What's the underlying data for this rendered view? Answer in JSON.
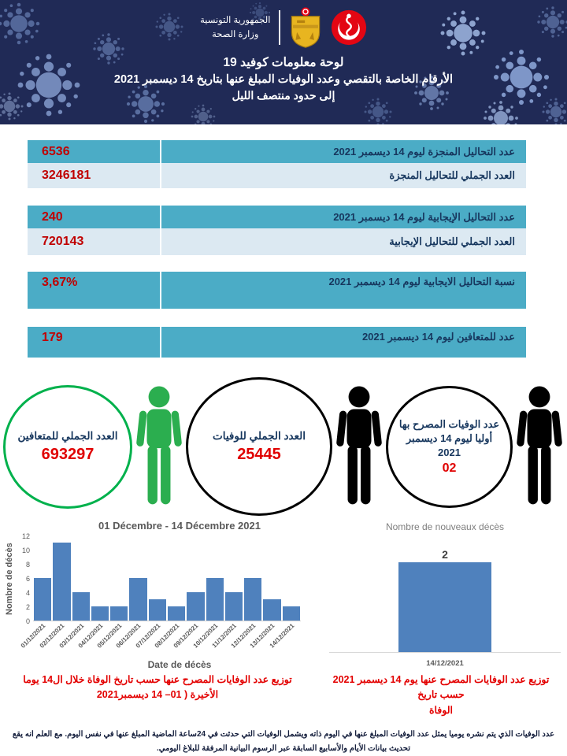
{
  "header": {
    "government_line1": "الجمهورية التونسية",
    "government_line2": "وزارة الصحة",
    "title_line1": "لوحة معلومات كوفيد  19",
    "title_line2": "الأرقام الخاصة بالتقصي وعدد الوفيات المبلغ عنها بتاريخ 14 ديسمبر 2021",
    "title_line3": "إلى حدود منتصف الليل"
  },
  "stat_rows": [
    {
      "label": "عدد التحاليل المنجزة ليوم  14 ديسمبر 2021",
      "value": "6536"
    },
    {
      "label": "العدد الجملي للتحاليل المنجزة",
      "value": "3246181"
    },
    {
      "label": "عدد التحاليل الإيجابية ليوم  14 ديسمبر 2021",
      "value": "240"
    },
    {
      "label": "العدد الجملي للتحاليل الإيجابية",
      "value": "720143"
    },
    {
      "label": "نسبة التحاليل الايجابية ليوم 14 ديسمبر 2021",
      "value": "3,67%"
    },
    {
      "label": "عدد للمتعافين ليوم 14 ديسمبر 2021",
      "value": "179"
    }
  ],
  "circles": {
    "recovered": {
      "label": "العدد الجملي للمتعافين",
      "value": "693297"
    },
    "deaths_total": {
      "label": "العدد الجملي للوفيات",
      "value": "25445"
    },
    "new_deaths": {
      "label": "عدد الوفيات المصرح بها أوليا ليوم 14 ديسمبر  2021",
      "value": "02"
    }
  },
  "chart_data": [
    {
      "type": "bar",
      "title": "01 Décembre - 14 Décembre 2021",
      "xlabel": "Date de décès",
      "ylabel": "Nombre de décès",
      "categories": [
        "01/12/2021",
        "02/12/2021",
        "03/12/2021",
        "04/12/2021",
        "05/12/2021",
        "06/12/2021",
        "07/12/2021",
        "08/12/2021",
        "09/12/2021",
        "10/12/2021",
        "11/12/2021",
        "12/12/2021",
        "13/12/2021",
        "14/12/2021"
      ],
      "values": [
        6,
        11,
        4,
        2,
        2,
        6,
        3,
        2,
        4,
        6,
        4,
        6,
        3,
        2
      ],
      "ylim": [
        0,
        12
      ],
      "yticks": [
        0,
        2,
        4,
        6,
        8,
        10,
        12
      ],
      "bar_color": "#4f81bd",
      "grid": false,
      "legend": false
    },
    {
      "type": "bar",
      "title": "Nombre de nouveaux décès",
      "categories": [
        "14/12/2021"
      ],
      "values": [
        2
      ],
      "ylim": [
        0,
        2
      ],
      "data_labels": true,
      "bar_color": "#4f81bd",
      "grid": false,
      "legend": false
    }
  ],
  "captions": {
    "left_line1": "توزيع عدد الوفايات المصرح عنها حسب تاريخ الوفاة خلال ال14 يوما",
    "left_line2": "الأخيرة ( 01– 14 ديسمبر2021",
    "right_line1": "توزيع عدد الوفايات المصرح عنها يوم  14 ديسمبر 2021 حسب تاريخ",
    "right_line2": "الوفاة"
  },
  "footer": {
    "note": "عدد الوفيات الذي يتم نشره يوميا يمثل عدد الوفيات المبلغ عنها في اليوم ذاته ويشمل الوفيات التي حدثت في 24ساعة الماضية المبلغ عنها في نفس  اليوم. مع العلم انه يقع تحديث بيانات الأيام والأسابيع السابقة عبر الرسوم البيانية المرفقة للبلاغ اليومي."
  },
  "colors": {
    "header_navy": "#202a56",
    "teal_row": "#4bacc6",
    "light_row": "#dce9f2",
    "value_red": "#c00000",
    "caption_red": "#e30000",
    "chart_bar_blue": "#4f81bd",
    "recovered_green": "#00b14c"
  },
  "icons": {
    "virus-icon": "svg dotted virus cluster",
    "person-green-icon": "svg pictogram",
    "person-black-icon": "svg pictogram",
    "tunisia-coat-of-arms-icon": "svg gold shield with flag roundel",
    "ministry-of-health-logo-icon": "svg red disc with white crescent and staff"
  }
}
